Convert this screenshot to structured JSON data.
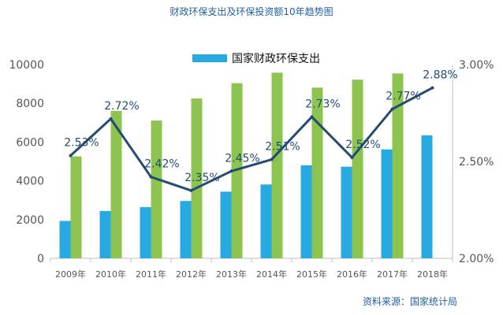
{
  "title": "财政环保支出及环保投资额10年趋势图",
  "source": "资料来源：国家统计局",
  "colors": {
    "bar_fiscal": "#27a9e1",
    "bar_invest": "#8dc44f",
    "line": "#234b74",
    "title": "#1f5f9f",
    "axis_text": "#555555"
  },
  "chart_data": {
    "type": "bar",
    "categories": [
      "2009年",
      "2010年",
      "2011年",
      "2012年",
      "2013年",
      "2014年",
      "2015年",
      "2016年",
      "2017年",
      "2018年"
    ],
    "series": [
      {
        "name": "国家财政环保支出",
        "type": "bar",
        "axis": "left",
        "values": [
          1930,
          2440,
          2640,
          2960,
          3440,
          3810,
          4800,
          4730,
          5620,
          6350
        ]
      },
      {
        "type": "bar",
        "axis": "left",
        "values": [
          5260,
          7610,
          7110,
          8250,
          9040,
          9580,
          8810,
          9220,
          9540,
          null
        ]
      },
      {
        "type": "line",
        "axis": "right",
        "values": [
          2.53,
          2.72,
          2.42,
          2.35,
          2.45,
          2.51,
          2.73,
          2.52,
          2.77,
          2.88
        ],
        "labels": [
          "2.53%",
          "2.72%",
          "2.42%",
          "2.35%",
          "2.45%",
          "2.51%",
          "2.73%",
          "2.52%",
          "2.77%",
          "2.88%"
        ]
      }
    ],
    "left_axis": {
      "ylim": [
        0,
        10000
      ],
      "ticks": [
        "0",
        "2000",
        "4000",
        "6000",
        "8000",
        "10000"
      ]
    },
    "right_axis": {
      "ylim": [
        2.0,
        3.0
      ],
      "ticks": [
        "2.00%",
        "2.50%",
        "3.00%"
      ]
    },
    "legend": {
      "entries": [
        "国家财政环保支出"
      ],
      "position": "top-center"
    },
    "grid": false
  }
}
